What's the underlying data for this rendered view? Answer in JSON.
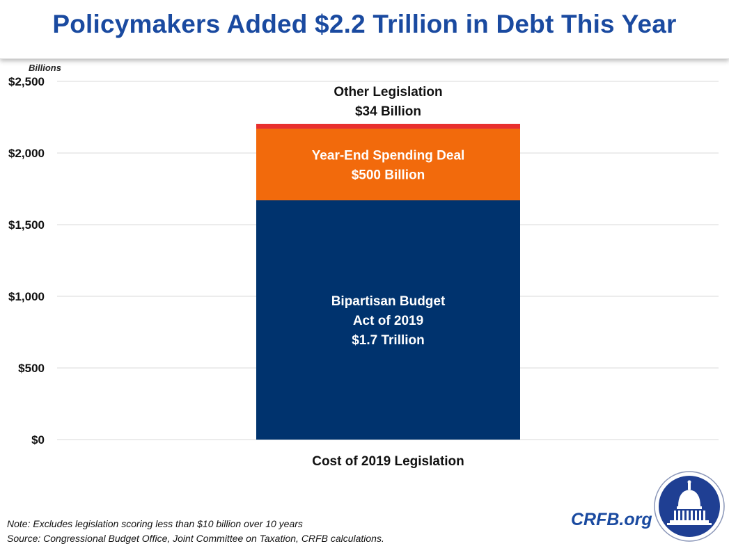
{
  "title": "Policymakers Added $2.2 Trillion in Debt This Year",
  "y_unit_label": "Billions",
  "chart_data": {
    "type": "bar",
    "stacked": true,
    "categories": [
      "Cost of 2019 Legislation"
    ],
    "series": [
      {
        "name": "Bipartisan Budget Act of 2019",
        "label_lines": [
          "Bipartisan Budget",
          "Act of 2019",
          "$1.7 Trillion"
        ],
        "values": [
          1670
        ],
        "color": "#00336e",
        "label_color": "#ffffff"
      },
      {
        "name": "Year-End Spending Deal",
        "label_lines": [
          "Year-End Spending Deal",
          "$500 Billion"
        ],
        "values": [
          500
        ],
        "color": "#f26a0c",
        "label_color": "#ffffff"
      },
      {
        "name": "Other Legislation",
        "label_lines": [
          "Other Legislation",
          "$34 Billion"
        ],
        "values": [
          34
        ],
        "color": "#e8302e",
        "label_color": "#111111",
        "label_position": "above"
      }
    ],
    "ylim": [
      0,
      2500
    ],
    "yticks": [
      0,
      500,
      1000,
      1500,
      2000,
      2500
    ],
    "ytick_labels": [
      "$0",
      "$500",
      "$1,000",
      "$1,500",
      "$2,000",
      "$2,500"
    ],
    "grid": true,
    "grid_color": "#d9d9d9"
  },
  "notes": {
    "note": "Note: Excludes legislation scoring less than $10 billion over 10 years",
    "source": "Source: Congressional Budget Office, Joint Committee on Taxation, CRFB calculations."
  },
  "brand": "CRFB.org",
  "colors": {
    "title": "#1a4aa0",
    "seal": "#1f3f93"
  }
}
